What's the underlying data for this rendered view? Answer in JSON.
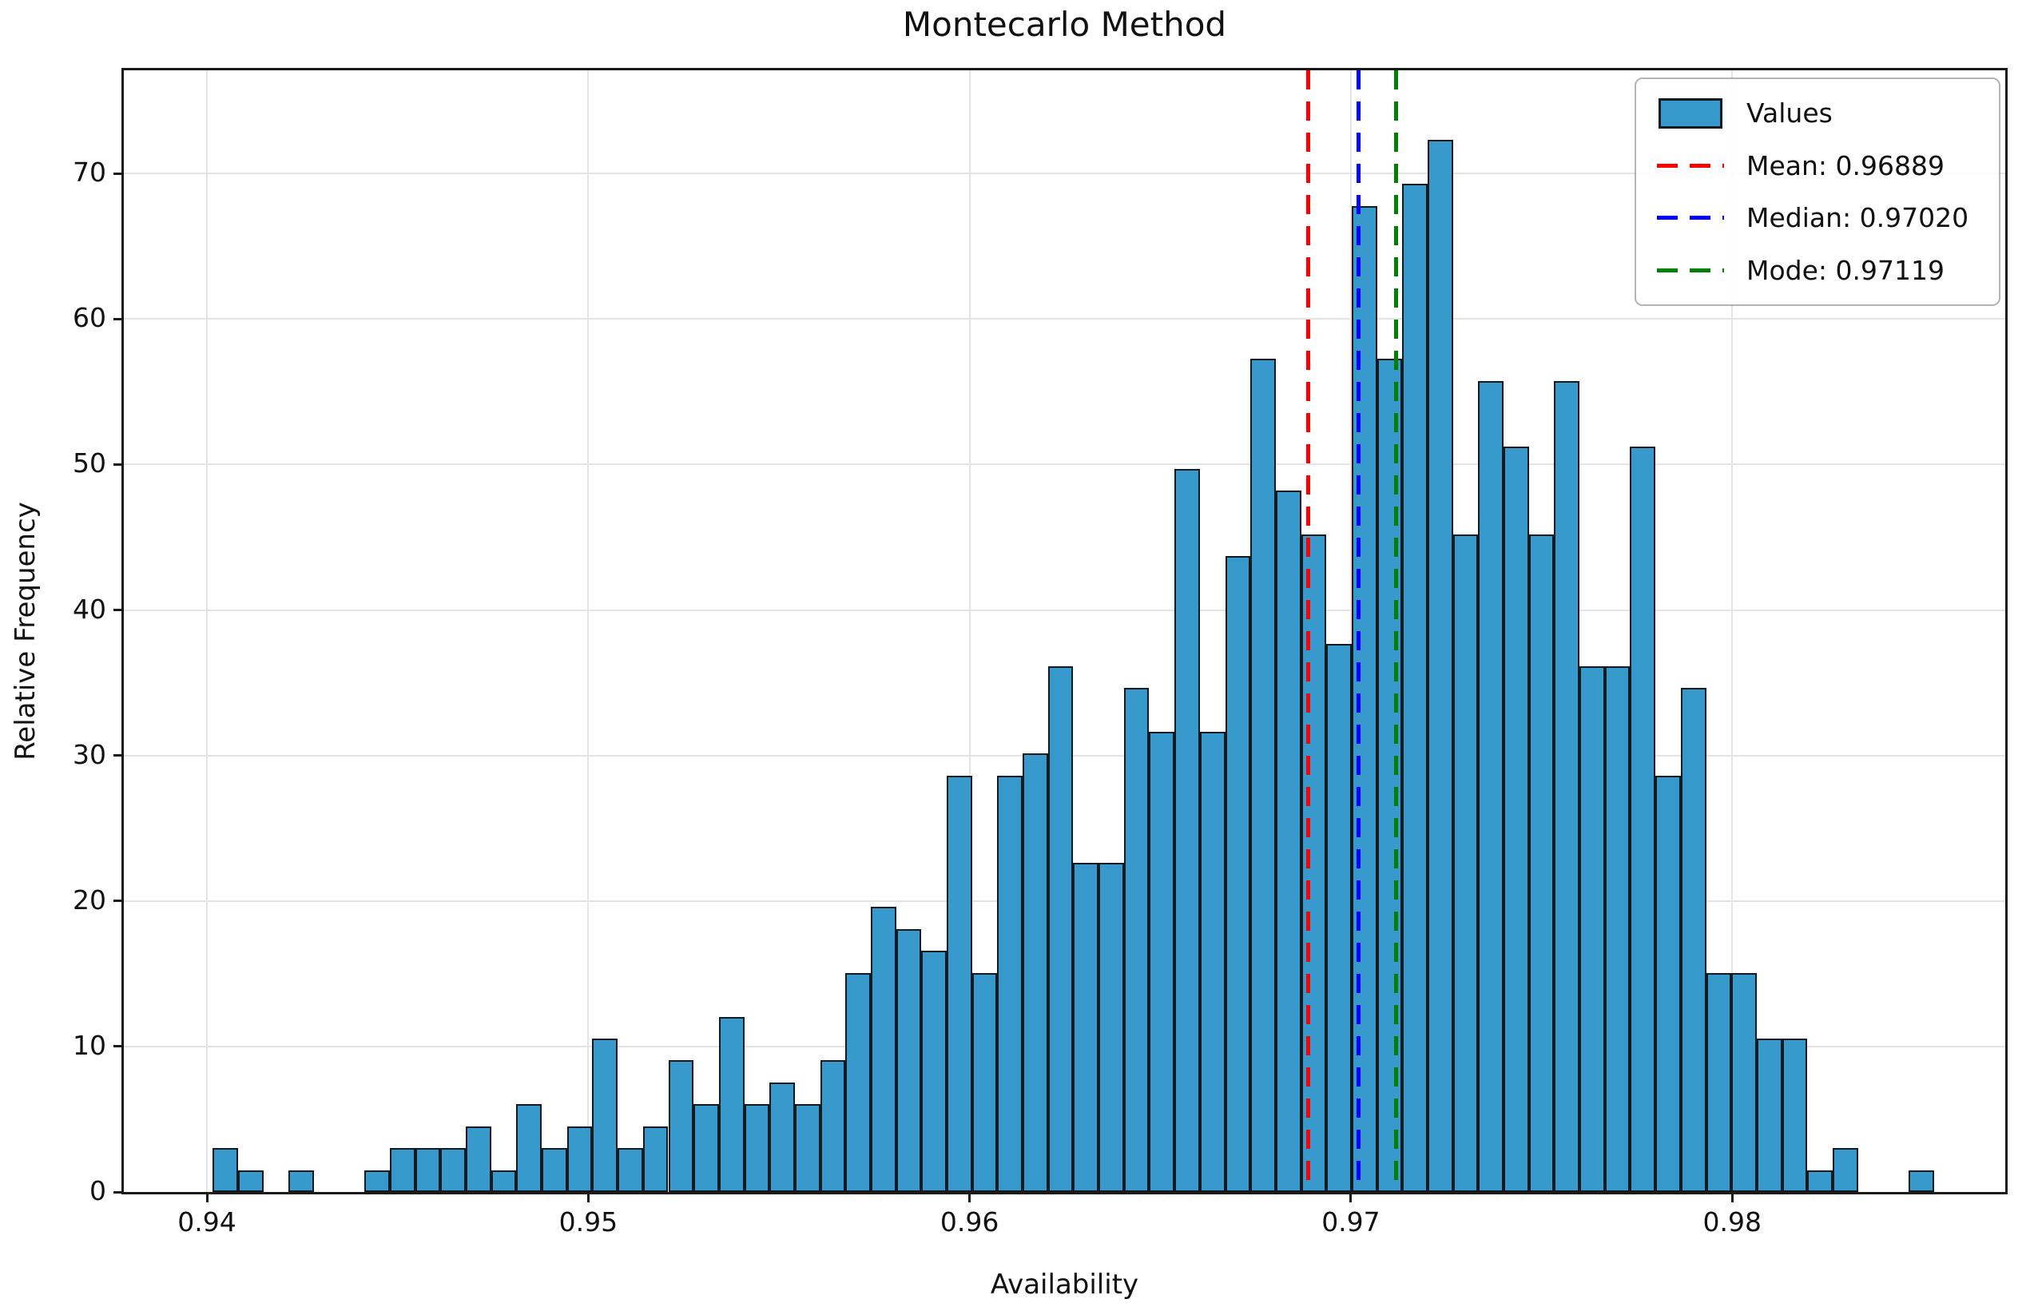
{
  "chart_data": {
    "type": "bar",
    "subtype": "histogram-density",
    "title": "Montecarlo Method",
    "xlabel": "Availability",
    "ylabel": "Relative Frequency",
    "grid": true,
    "legend_position": "upper right",
    "xlim": [
      0.93782,
      0.98716
    ],
    "ylim": [
      0,
      77.1
    ],
    "x_ticks": [
      0.94,
      0.95,
      0.96,
      0.97,
      0.98
    ],
    "x_tick_labels": [
      "0.94",
      "0.95",
      "0.96",
      "0.97",
      "0.98"
    ],
    "y_ticks": [
      0,
      10,
      20,
      30,
      40,
      50,
      60,
      70
    ],
    "histogram": {
      "bin_start": 0.94015,
      "bin_width": 0.0006638,
      "heights": [
        3.01,
        1.51,
        0,
        1.51,
        0,
        0,
        1.51,
        3.01,
        3.01,
        3.01,
        4.52,
        1.51,
        6.03,
        3.01,
        4.52,
        10.55,
        3.01,
        4.52,
        9.04,
        6.03,
        12.05,
        6.03,
        7.53,
        6.03,
        9.04,
        15.07,
        19.58,
        18.08,
        16.57,
        28.62,
        15.07,
        28.62,
        30.13,
        36.16,
        22.6,
        22.6,
        34.65,
        31.64,
        49.71,
        31.64,
        43.69,
        57.25,
        48.21,
        45.2,
        37.66,
        67.79,
        57.25,
        69.3,
        72.31,
        45.2,
        55.74,
        51.22,
        45.2,
        55.74,
        36.16,
        36.16,
        51.22,
        28.62,
        34.65,
        15.07,
        15.07,
        10.55,
        10.55,
        1.51,
        3.01,
        0,
        0,
        1.51,
        0,
        0
      ]
    },
    "stat_lines": [
      {
        "name": "mean",
        "x": 0.96889,
        "color": "#ff0000",
        "style": "dashed"
      },
      {
        "name": "median",
        "x": 0.9702,
        "color": "#0000ff",
        "style": "dashed"
      },
      {
        "name": "mode",
        "x": 0.97119,
        "color": "#008000",
        "style": "dashed"
      }
    ],
    "legend": {
      "items": [
        {
          "label": "Values",
          "type": "patch",
          "color": "#3799cc"
        },
        {
          "label": "Mean: 0.96889",
          "type": "dashed-line",
          "color": "#ff0000"
        },
        {
          "label": "Median: 0.97020",
          "type": "dashed-line",
          "color": "#0000ff"
        },
        {
          "label": "Mode: 0.97119",
          "type": "dashed-line",
          "color": "#008000"
        }
      ]
    },
    "colors": {
      "bar_fill": "#3799cc",
      "bar_edge": "#121a1f",
      "grid": "#e4e4e4",
      "spine": "#1a1a1a",
      "background": "#ffffff",
      "text": "#111111"
    }
  }
}
